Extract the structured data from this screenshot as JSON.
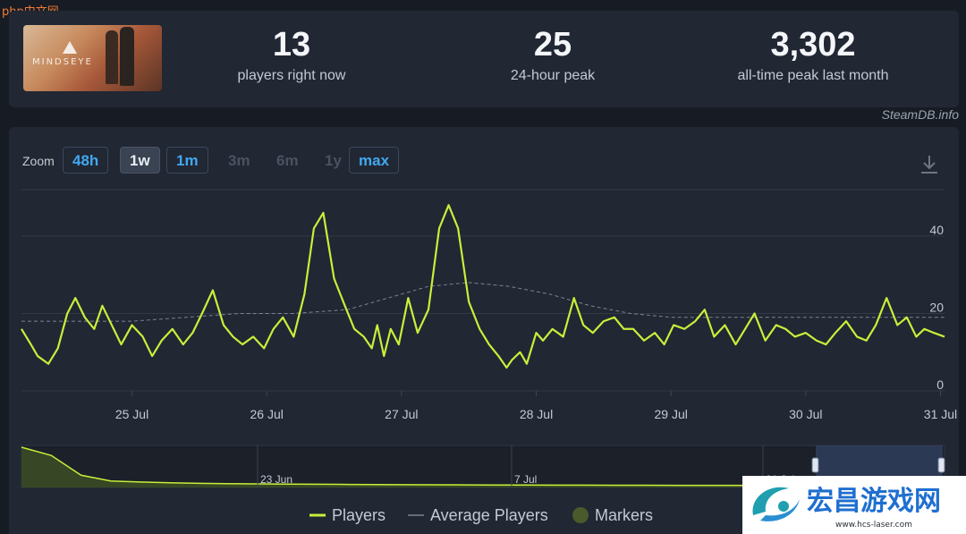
{
  "watermark": {
    "brand": "php",
    "text": "中文网"
  },
  "stats": [
    {
      "value": "13",
      "label": "players right now"
    },
    {
      "value": "25",
      "label": "24-hour peak"
    },
    {
      "value": "3,302",
      "label": "all-time peak last month"
    }
  ],
  "game": {
    "logo_text": "MINDSEYE"
  },
  "source": "SteamDB.info",
  "zoom": {
    "label": "Zoom",
    "buttons": [
      {
        "label": "48h",
        "state": "on"
      },
      {
        "label": "1w",
        "state": "sel"
      },
      {
        "label": "1m",
        "state": "on"
      },
      {
        "label": "3m",
        "state": "off"
      },
      {
        "label": "6m",
        "state": "off"
      },
      {
        "label": "1y",
        "state": "off"
      },
      {
        "label": "max",
        "state": "on"
      }
    ]
  },
  "colors": {
    "players": "#c8ef3a",
    "average": "#7a8594",
    "markers": "#4a5a2a",
    "navigator_fill": "#3b4a24"
  },
  "legend": [
    {
      "name": "Players",
      "kind": "line"
    },
    {
      "name": "Average Players",
      "kind": "dash"
    },
    {
      "name": "Markers",
      "kind": "dot"
    }
  ],
  "chart_data": {
    "type": "line",
    "x_ticks": [
      "25 Jul",
      "26 Jul",
      "27 Jul",
      "28 Jul",
      "29 Jul",
      "30 Jul",
      "31 Jul"
    ],
    "y_ticks": [
      "0",
      "20",
      "40"
    ],
    "ylim": [
      0,
      52
    ],
    "xlim_days": [
      -0.82,
      6.03
    ],
    "grid": true,
    "legend_position": "bottom",
    "series": [
      {
        "name": "Players",
        "x_days": [
          -0.82,
          -0.75,
          -0.7,
          -0.62,
          -0.55,
          -0.48,
          -0.42,
          -0.35,
          -0.28,
          -0.22,
          -0.15,
          -0.08,
          0.0,
          0.08,
          0.15,
          0.22,
          0.3,
          0.38,
          0.45,
          0.52,
          0.6,
          0.68,
          0.75,
          0.82,
          0.9,
          0.98,
          1.05,
          1.12,
          1.2,
          1.28,
          1.35,
          1.42,
          1.5,
          1.58,
          1.65,
          1.72,
          1.78,
          1.82,
          1.87,
          1.92,
          1.98,
          2.05,
          2.12,
          2.2,
          2.28,
          2.35,
          2.42,
          2.5,
          2.58,
          2.65,
          2.72,
          2.78,
          2.82,
          2.88,
          2.93,
          3.0,
          3.05,
          3.12,
          3.2,
          3.28,
          3.35,
          3.42,
          3.5,
          3.58,
          3.65,
          3.72,
          3.8,
          3.88,
          3.95,
          4.02,
          4.1,
          4.18,
          4.25,
          4.32,
          4.4,
          4.48,
          4.55,
          4.62,
          4.7,
          4.78,
          4.85,
          4.92,
          5.0,
          5.08,
          5.15,
          5.22,
          5.3,
          5.38,
          5.45,
          5.52,
          5.6,
          5.68,
          5.75,
          5.82,
          5.88,
          5.95,
          6.03
        ],
        "values": [
          16,
          12,
          9,
          7,
          11,
          20,
          24,
          19,
          16,
          22,
          17,
          12,
          17,
          14,
          9,
          13,
          16,
          12,
          15,
          20,
          26,
          17,
          14,
          12,
          14,
          11,
          16,
          19,
          14,
          25,
          42,
          46,
          29,
          22,
          16,
          14,
          11,
          17,
          9,
          16,
          12,
          24,
          15,
          21,
          42,
          48,
          42,
          23,
          16,
          12,
          9,
          6,
          8,
          10,
          7,
          15,
          13,
          16,
          14,
          24,
          17,
          15,
          18,
          19,
          16,
          16,
          13,
          15,
          12,
          17,
          16,
          18,
          21,
          14,
          17,
          12,
          16,
          20,
          13,
          17,
          16,
          14,
          15,
          13,
          12,
          15,
          18,
          14,
          13,
          17,
          24,
          17,
          19,
          14,
          16,
          15,
          14
        ]
      },
      {
        "name": "Average Players",
        "x_days": [
          -0.82,
          -0.4,
          0.0,
          0.4,
          0.8,
          1.2,
          1.6,
          1.9,
          2.2,
          2.5,
          2.8,
          3.1,
          3.4,
          3.7,
          4.0,
          4.5,
          5.0,
          5.5,
          6.03
        ],
        "values": [
          18,
          18,
          18,
          19,
          20,
          20,
          21,
          24,
          27,
          28,
          27,
          25,
          22,
          20,
          19,
          19,
          19,
          19,
          19
        ]
      }
    ]
  },
  "navigator": {
    "date_labels": [
      "23 Jun",
      "7 Jul",
      "21 Jul"
    ],
    "values": [
      3302,
      2600,
      900,
      400,
      320,
      250,
      200,
      170,
      150,
      130,
      120,
      110,
      100,
      90,
      80,
      70,
      60,
      55,
      50,
      45,
      40,
      35,
      30,
      28,
      25,
      22,
      20,
      18,
      16,
      15,
      14,
      13
    ]
  }
}
